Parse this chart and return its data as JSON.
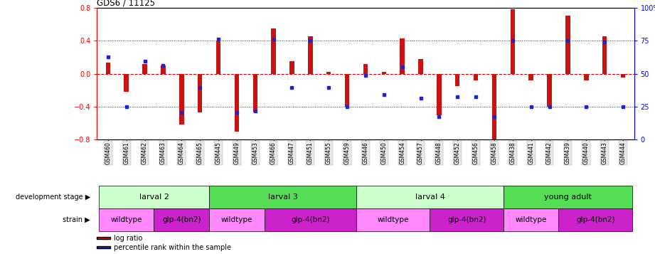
{
  "title": "GDS6 / 11125",
  "samples": [
    "GSM460",
    "GSM461",
    "GSM462",
    "GSM463",
    "GSM464",
    "GSM465",
    "GSM445",
    "GSM449",
    "GSM453",
    "GSM466",
    "GSM447",
    "GSM451",
    "GSM455",
    "GSM459",
    "GSM446",
    "GSM450",
    "GSM454",
    "GSM457",
    "GSM448",
    "GSM452",
    "GSM456",
    "GSM458",
    "GSM438",
    "GSM441",
    "GSM442",
    "GSM439",
    "GSM440",
    "GSM443",
    "GSM444"
  ],
  "log_ratio": [
    0.13,
    -0.22,
    0.12,
    0.1,
    -0.62,
    -0.47,
    0.4,
    -0.7,
    -0.47,
    0.55,
    0.15,
    0.45,
    0.02,
    -0.4,
    0.12,
    0.02,
    0.43,
    0.18,
    -0.5,
    -0.15,
    -0.08,
    -0.8,
    0.78,
    -0.08,
    -0.4,
    0.7,
    -0.08,
    0.45,
    -0.05
  ],
  "percentile": [
    0.2,
    -0.4,
    0.15,
    0.1,
    -0.47,
    -0.17,
    0.42,
    -0.47,
    -0.45,
    0.42,
    -0.17,
    0.4,
    -0.17,
    -0.4,
    -0.02,
    -0.25,
    0.08,
    -0.3,
    -0.52,
    -0.28,
    -0.28,
    -0.52,
    0.4,
    -0.4,
    -0.4,
    0.4,
    -0.4,
    0.38,
    -0.4
  ],
  "dev_stages": [
    {
      "label": "larval 2",
      "start": 0,
      "end": 6,
      "color": "#ccffcc"
    },
    {
      "label": "larval 3",
      "start": 6,
      "end": 14,
      "color": "#55dd55"
    },
    {
      "label": "larval 4",
      "start": 14,
      "end": 22,
      "color": "#ccffcc"
    },
    {
      "label": "young adult",
      "start": 22,
      "end": 29,
      "color": "#55dd55"
    }
  ],
  "strains": [
    {
      "label": "wildtype",
      "start": 0,
      "end": 3,
      "color": "#ff88ff"
    },
    {
      "label": "glp-4(bn2)",
      "start": 3,
      "end": 6,
      "color": "#cc22cc"
    },
    {
      "label": "wildtype",
      "start": 6,
      "end": 9,
      "color": "#ff88ff"
    },
    {
      "label": "glp-4(bn2)",
      "start": 9,
      "end": 14,
      "color": "#cc22cc"
    },
    {
      "label": "wildtype",
      "start": 14,
      "end": 18,
      "color": "#ff88ff"
    },
    {
      "label": "glp-4(bn2)",
      "start": 18,
      "end": 22,
      "color": "#cc22cc"
    },
    {
      "label": "wildtype",
      "start": 22,
      "end": 25,
      "color": "#ff88ff"
    },
    {
      "label": "glp-4(bn2)",
      "start": 25,
      "end": 29,
      "color": "#cc22cc"
    }
  ],
  "ylim": [
    -0.8,
    0.8
  ],
  "yticks_left": [
    -0.8,
    -0.4,
    0.0,
    0.4,
    0.8
  ],
  "yticks_right": [
    0,
    25,
    50,
    75,
    100
  ],
  "bar_color": "#cc1111",
  "dot_color": "#2222cc",
  "bg_color": "#ffffff",
  "hline_color": "#cc0000",
  "dotline_color": "#333333"
}
